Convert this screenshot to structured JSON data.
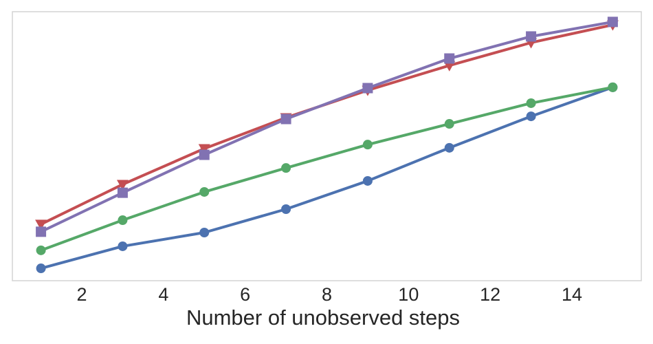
{
  "chart_data": {
    "type": "line",
    "title": "",
    "xlabel": "Number of unobserved steps",
    "ylabel": "",
    "x": [
      1,
      3,
      5,
      7,
      9,
      11,
      13,
      15
    ],
    "x_ticks": [
      "2",
      "4",
      "6",
      "8",
      "10",
      "12",
      "14"
    ],
    "x_tick_values": [
      2,
      4,
      6,
      8,
      10,
      12,
      14
    ],
    "x_range_shown": [
      0.3,
      15.7
    ],
    "y_axis_visible": false,
    "y_units": "normalized plot height (no y-axis ticks shown in figure)",
    "ylim": [
      0,
      1
    ],
    "grid": false,
    "legend_position": "none",
    "series": [
      {
        "name": "blue-circle",
        "marker": "circle",
        "color": "#4C72B0",
        "values": [
          0.046,
          0.128,
          0.179,
          0.266,
          0.371,
          0.494,
          0.611,
          0.719
        ]
      },
      {
        "name": "green-circle",
        "marker": "circle",
        "color": "#55A868",
        "values": [
          0.113,
          0.225,
          0.33,
          0.419,
          0.506,
          0.583,
          0.66,
          0.719
        ]
      },
      {
        "name": "red-triangle-down",
        "marker": "triangle-down",
        "color": "#C44E52",
        "values": [
          0.21,
          0.358,
          0.491,
          0.606,
          0.708,
          0.8,
          0.885,
          0.951
        ]
      },
      {
        "name": "purple-square",
        "marker": "square",
        "color": "#8172B2",
        "values": [
          0.182,
          0.327,
          0.468,
          0.601,
          0.716,
          0.826,
          0.908,
          0.962
        ]
      }
    ],
    "colors": {
      "blue": "#4C72B0",
      "green": "#55A868",
      "red": "#C44E52",
      "purple": "#8172B2",
      "plot_border": "#D3D3D3",
      "text": "#262626"
    }
  }
}
